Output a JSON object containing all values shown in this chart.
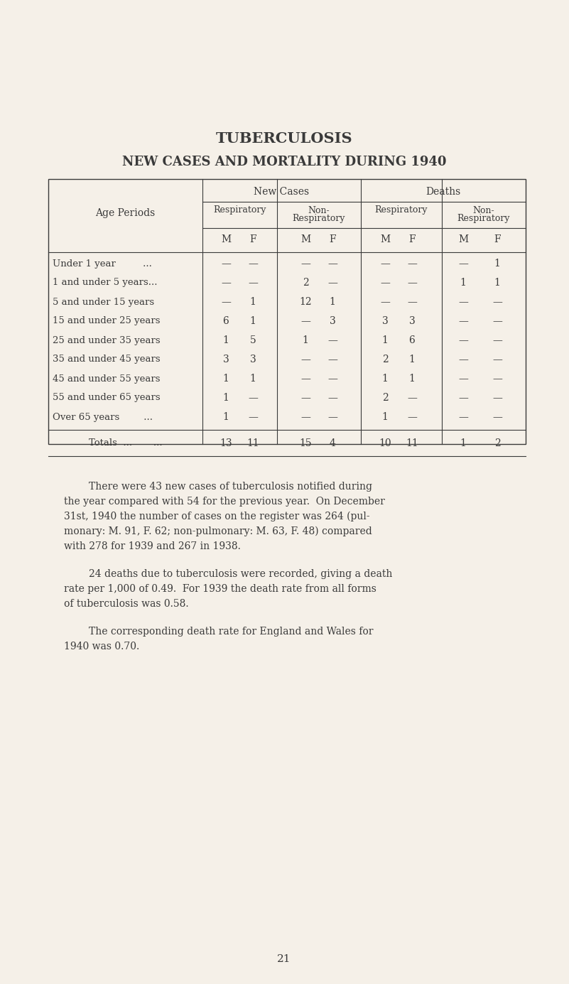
{
  "bg_color": "#f5f0e8",
  "text_color": "#3a3a3a",
  "title1": "TUBERCULOSIS",
  "title2": "NEW CASES AND MORTALITY DURING 1940",
  "col_headers_bot": [
    "M",
    "F",
    "M",
    "F",
    "M",
    "F",
    "M",
    "F"
  ],
  "age_periods": [
    "Under 1 year         ...",
    "1 and under 5 years...",
    "5 and under 15 years",
    "15 and under 25 years",
    "25 and under 35 years",
    "35 and under 45 years",
    "45 and under 55 years",
    "55 and under 65 years",
    "Over 65 years        ..."
  ],
  "table_data": [
    [
      "—",
      "—",
      "—",
      "—",
      "—",
      "—",
      "—",
      "1"
    ],
    [
      "—",
      "—",
      "2",
      "—",
      "—",
      "—",
      "1",
      "1"
    ],
    [
      "—",
      "1",
      "12",
      "1",
      "—",
      "—",
      "—",
      "—"
    ],
    [
      "6",
      "1",
      "—",
      "3",
      "3",
      "3",
      "—",
      "—"
    ],
    [
      "1",
      "5",
      "1",
      "—",
      "1",
      "6",
      "—",
      "—"
    ],
    [
      "3",
      "3",
      "—",
      "—",
      "2",
      "1",
      "—",
      "—"
    ],
    [
      "1",
      "1",
      "—",
      "—",
      "1",
      "1",
      "—",
      "—"
    ],
    [
      "1",
      "—",
      "—",
      "—",
      "2",
      "—",
      "—",
      "—"
    ],
    [
      "1",
      "—",
      "—",
      "—",
      "1",
      "—",
      "—",
      "—"
    ]
  ],
  "totals_label": "Totals  ...       ...",
  "totals_data": [
    "13",
    "11",
    "15",
    "4",
    "10",
    "11",
    "1",
    "2"
  ],
  "para1_indent": "        There were 43 new cases of tuberculosis notified during",
  "para1_lines": [
    "the year compared with 54 for the previous year.  On December",
    "31st, 1940 the number of cases on the register was 264 (pul-",
    "monary: M. 91, F. 62; non-pulmonary: M. 63, F. 48) compared",
    "with 278 for 1939 and 267 in 1938."
  ],
  "para2_indent": "        24 deaths due to tuberculosis were recorded, giving a death",
  "para2_lines": [
    "rate per 1,000 of 0.49.  For 1939 the death rate from all forms",
    "of tuberculosis was 0.58."
  ],
  "para3_indent": "        The corresponding death rate for England and Wales for",
  "para3_lines": [
    "1940 was 0.70."
  ],
  "page_number": "21"
}
